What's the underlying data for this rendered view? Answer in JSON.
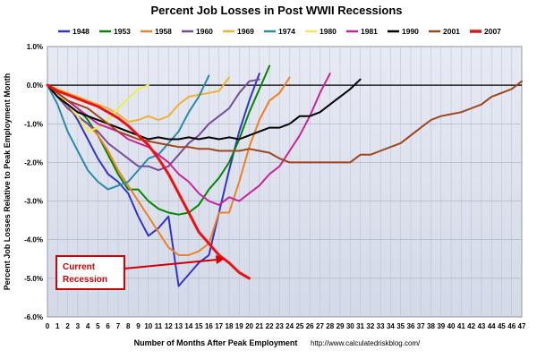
{
  "chart_data": {
    "type": "line",
    "title": "Percent Job Losses in Post WWII Recessions",
    "xlabel": "Number of Months After Peak Employment",
    "ylabel": "Percent Job Losses Relative to Peak Employment Month",
    "source": "http://www.calculatedriskblog.com/",
    "xlim": [
      0,
      47
    ],
    "ylim": [
      -6.0,
      1.0
    ],
    "x_ticks": [
      "0",
      "1",
      "2",
      "3",
      "4",
      "5",
      "6",
      "7",
      "8",
      "9",
      "10",
      "11",
      "12",
      "13",
      "14",
      "15",
      "16",
      "17",
      "18",
      "19",
      "20",
      "21",
      "22",
      "23",
      "24",
      "25",
      "26",
      "27",
      "28",
      "29",
      "30",
      "31",
      "32",
      "33",
      "34",
      "35",
      "36",
      "37",
      "38",
      "39",
      "40",
      "41",
      "42",
      "43",
      "44",
      "45",
      "46",
      "47"
    ],
    "y_ticks": [
      {
        "value": 1.0,
        "label": "1.0%"
      },
      {
        "value": 0.0,
        "label": "0.0%"
      },
      {
        "value": -1.0,
        "label": "-1.0%"
      },
      {
        "value": -2.0,
        "label": "-2.0%"
      },
      {
        "value": -3.0,
        "label": "-3.0%"
      },
      {
        "value": -4.0,
        "label": "-4.0%"
      },
      {
        "value": -5.0,
        "label": "-5.0%"
      },
      {
        "value": -6.0,
        "label": "-6.0%"
      }
    ],
    "grid": true,
    "legend_position": "top",
    "annotation": {
      "lines": [
        "Current",
        "Recession"
      ],
      "color": "#d40000"
    },
    "series": [
      {
        "name": "1948",
        "color": "#3333cc",
        "width": 2,
        "x": [
          0,
          1,
          2,
          3,
          4,
          5,
          6,
          7,
          8,
          9,
          10,
          11,
          12,
          13,
          14,
          15,
          16,
          17,
          18,
          19,
          20,
          21
        ],
        "y": [
          0,
          -0.3,
          -0.5,
          -0.9,
          -1.4,
          -1.9,
          -2.3,
          -2.5,
          -2.8,
          -3.4,
          -3.9,
          -3.7,
          -3.4,
          -5.2,
          -4.9,
          -4.6,
          -4.4,
          -3.3,
          -2.2,
          -1.2,
          -0.4,
          0.3
        ]
      },
      {
        "name": "1953",
        "color": "#008800",
        "width": 2,
        "x": [
          0,
          1,
          2,
          3,
          4,
          5,
          6,
          7,
          8,
          9,
          10,
          11,
          12,
          13,
          14,
          15,
          16,
          17,
          18,
          19,
          20,
          21,
          22
        ],
        "y": [
          0,
          -0.2,
          -0.4,
          -0.6,
          -0.9,
          -1.3,
          -1.8,
          -2.3,
          -2.7,
          -2.7,
          -3.0,
          -3.2,
          -3.3,
          -3.35,
          -3.3,
          -3.1,
          -2.7,
          -2.4,
          -2.0,
          -1.4,
          -0.7,
          -0.1,
          0.5
        ]
      },
      {
        "name": "1958",
        "color": "#f08020",
        "width": 2,
        "x": [
          0,
          1,
          2,
          3,
          4,
          5,
          6,
          7,
          8,
          9,
          10,
          11,
          12,
          13,
          14,
          15,
          16,
          17,
          18,
          19,
          20,
          21,
          22,
          23,
          24
        ],
        "y": [
          0,
          -0.3,
          -0.6,
          -0.8,
          -1.0,
          -1.3,
          -1.7,
          -2.2,
          -2.6,
          -3.0,
          -3.4,
          -3.8,
          -4.2,
          -4.4,
          -4.4,
          -4.3,
          -4.1,
          -3.3,
          -3.3,
          -2.5,
          -1.6,
          -0.9,
          -0.4,
          -0.2,
          0.2
        ]
      },
      {
        "name": "1960",
        "color": "#7a4a9a",
        "width": 2,
        "x": [
          0,
          1,
          2,
          3,
          4,
          5,
          6,
          7,
          8,
          9,
          10,
          11,
          12,
          13,
          14,
          15,
          16,
          17,
          18,
          19,
          20,
          21
        ],
        "y": [
          0,
          -0.3,
          -0.6,
          -0.8,
          -1.0,
          -1.2,
          -1.5,
          -1.7,
          -1.9,
          -2.1,
          -2.1,
          -2.2,
          -2.1,
          -1.8,
          -1.5,
          -1.3,
          -1.0,
          -0.8,
          -0.6,
          -0.2,
          0.1,
          0.15
        ]
      },
      {
        "name": "1969",
        "color": "#f0b030",
        "width": 2,
        "x": [
          0,
          1,
          2,
          3,
          4,
          5,
          6,
          7,
          8,
          9,
          10,
          11,
          12,
          13,
          14,
          15,
          16,
          17,
          18
        ],
        "y": [
          0,
          -0.1,
          -0.2,
          -0.3,
          -0.4,
          -0.5,
          -0.6,
          -0.75,
          -0.95,
          -0.9,
          -0.8,
          -0.9,
          -0.8,
          -0.5,
          -0.3,
          -0.25,
          -0.2,
          -0.15,
          0.2
        ]
      },
      {
        "name": "1974",
        "color": "#2a8aa8",
        "width": 2,
        "x": [
          0,
          1,
          2,
          3,
          4,
          5,
          6,
          7,
          8,
          9,
          10,
          11,
          12,
          13,
          14,
          15,
          16
        ],
        "y": [
          0,
          -0.5,
          -1.2,
          -1.7,
          -2.2,
          -2.5,
          -2.7,
          -2.6,
          -2.5,
          -2.2,
          -1.9,
          -1.8,
          -1.5,
          -1.2,
          -0.7,
          -0.3,
          0.25
        ]
      },
      {
        "name": "1980",
        "color": "#eeee44",
        "width": 2,
        "x": [
          0,
          1,
          2,
          3,
          4,
          5,
          6,
          7,
          8,
          9,
          10
        ],
        "y": [
          0,
          -0.2,
          -0.5,
          -0.8,
          -1.2,
          -1.1,
          -0.9,
          -0.6,
          -0.35,
          -0.1,
          0.0
        ]
      },
      {
        "name": "1981",
        "color": "#cc2299",
        "width": 2,
        "x": [
          0,
          1,
          2,
          3,
          4,
          5,
          6,
          7,
          8,
          9,
          10,
          11,
          12,
          13,
          14,
          15,
          16,
          17,
          18,
          19,
          20,
          21,
          22,
          23,
          24,
          25,
          26,
          27,
          28
        ],
        "y": [
          0,
          -0.2,
          -0.4,
          -0.6,
          -0.8,
          -1.0,
          -1.1,
          -1.2,
          -1.4,
          -1.5,
          -1.6,
          -1.8,
          -2.0,
          -2.3,
          -2.5,
          -2.8,
          -3.0,
          -3.1,
          -2.9,
          -3.0,
          -2.8,
          -2.6,
          -2.3,
          -2.1,
          -1.7,
          -1.3,
          -0.8,
          -0.2,
          0.3
        ]
      },
      {
        "name": "1990",
        "color": "#000000",
        "width": 2,
        "x": [
          0,
          1,
          2,
          3,
          4,
          5,
          6,
          7,
          8,
          9,
          10,
          11,
          12,
          13,
          14,
          15,
          16,
          17,
          18,
          19,
          20,
          21,
          22,
          23,
          24,
          25,
          26,
          27,
          28,
          29,
          30,
          31
        ],
        "y": [
          0,
          -0.3,
          -0.5,
          -0.7,
          -0.8,
          -0.9,
          -1.0,
          -1.1,
          -1.2,
          -1.3,
          -1.4,
          -1.35,
          -1.4,
          -1.4,
          -1.35,
          -1.4,
          -1.35,
          -1.4,
          -1.35,
          -1.4,
          -1.3,
          -1.2,
          -1.1,
          -1.1,
          -1.0,
          -0.8,
          -0.8,
          -0.7,
          -0.5,
          -0.3,
          -0.1,
          0.15
        ]
      },
      {
        "name": "2001",
        "color": "#a0441a",
        "width": 2,
        "x": [
          0,
          1,
          2,
          3,
          4,
          5,
          6,
          7,
          8,
          9,
          10,
          11,
          12,
          13,
          14,
          15,
          16,
          17,
          18,
          19,
          20,
          21,
          22,
          23,
          24,
          25,
          26,
          27,
          28,
          29,
          30,
          31,
          32,
          33,
          34,
          35,
          36,
          37,
          38,
          39,
          40,
          41,
          42,
          43,
          44,
          45,
          46,
          47
        ],
        "y": [
          0,
          -0.2,
          -0.4,
          -0.5,
          -0.6,
          -0.8,
          -1.0,
          -1.2,
          -1.3,
          -1.4,
          -1.45,
          -1.5,
          -1.55,
          -1.6,
          -1.6,
          -1.65,
          -1.65,
          -1.7,
          -1.7,
          -1.7,
          -1.65,
          -1.7,
          -1.75,
          -1.9,
          -2.0,
          -2.0,
          -2.0,
          -2.0,
          -2.0,
          -2.0,
          -2.0,
          -1.8,
          -1.8,
          -1.7,
          -1.6,
          -1.5,
          -1.3,
          -1.1,
          -0.9,
          -0.8,
          -0.75,
          -0.7,
          -0.6,
          -0.5,
          -0.3,
          -0.2,
          -0.1,
          0.1
        ]
      },
      {
        "name": "2007",
        "color": "#ee1111",
        "width": 3,
        "x": [
          0,
          1,
          2,
          3,
          4,
          5,
          6,
          7,
          8,
          9,
          10,
          11,
          12,
          13,
          14,
          15,
          16,
          17,
          18,
          19,
          20
        ],
        "y": [
          0,
          -0.15,
          -0.25,
          -0.35,
          -0.45,
          -0.55,
          -0.7,
          -0.85,
          -1.05,
          -1.3,
          -1.55,
          -1.9,
          -2.3,
          -2.8,
          -3.3,
          -3.8,
          -4.1,
          -4.4,
          -4.6,
          -4.85,
          -5.0
        ]
      }
    ]
  }
}
